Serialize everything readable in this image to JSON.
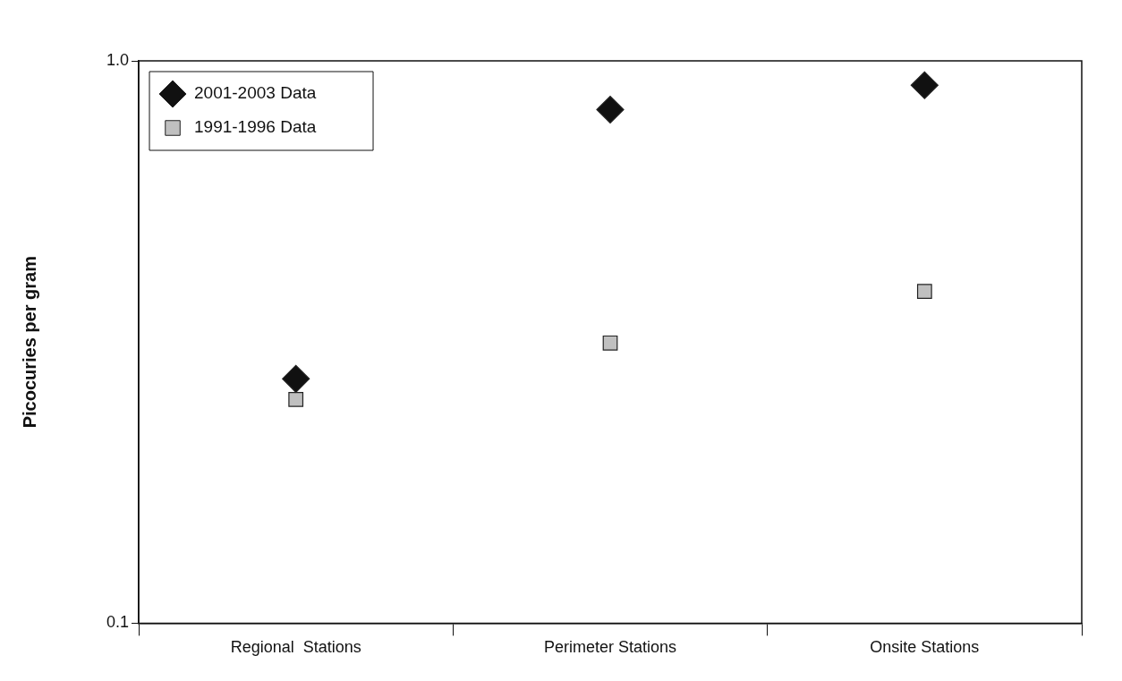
{
  "chart_data": {
    "type": "scatter",
    "ylabel": "Picocuries per gram",
    "categories": [
      "Regional  Stations",
      "Perimeter Stations",
      "Onsite Stations"
    ],
    "series": [
      {
        "name": "2001-2003 Data",
        "color": "#111111",
        "marker": "diamond",
        "values": [
          0.272,
          0.819,
          0.905
        ]
      },
      {
        "name": "1991-1996 Data",
        "color": "#c0c0c0",
        "marker": "square",
        "values": [
          0.25,
          0.315,
          0.389
        ]
      }
    ],
    "log": true,
    "ylim": [
      0.1,
      1
    ],
    "yticks": [
      {
        "value": 0.1,
        "label": "0.1"
      },
      {
        "value": 1,
        "label": "1.0"
      }
    ],
    "grid": false,
    "legend": "top left"
  }
}
